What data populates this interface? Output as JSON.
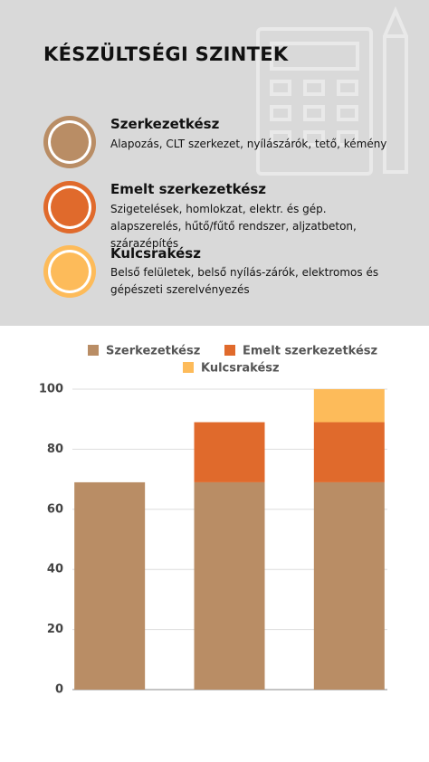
{
  "header": {
    "title": "KÉSZÜLTSÉGI SZINTEK"
  },
  "legend_items": [
    {
      "name": "Szerkezetkész",
      "description": "Alapozás, CLT szerkezet, nyílászárók, tető, kémény"
    },
    {
      "name": "Emelt szerkezetkész",
      "description": "Szigetelések, homlokzat,  elektr. és gép. alapszerelés, hűtő/fűtő rendszer, aljzatbeton, szárazépítés"
    },
    {
      "name": "Kulcsrakész",
      "description": "Belső felületek, belső nyílás-zárók, elektromos és gépészeti szerelvényezés"
    }
  ],
  "chart_data": {
    "type": "stacked_bar",
    "categories": [
      null,
      null,
      null
    ],
    "series": [
      {
        "name": "Szerkezetkész",
        "color": "#b98d65",
        "values": [
          69,
          69,
          69
        ]
      },
      {
        "name": "Emelt szerkezetkész",
        "color": "#e06a2c",
        "values": [
          null,
          20,
          20
        ]
      },
      {
        "name": "Kulcsrakész",
        "color": "#fdbb5a",
        "values": [
          null,
          null,
          11
        ]
      }
    ],
    "ylim": [
      0,
      100
    ],
    "yticks": [
      0,
      20,
      40,
      60,
      80,
      100
    ],
    "grid": true
  }
}
